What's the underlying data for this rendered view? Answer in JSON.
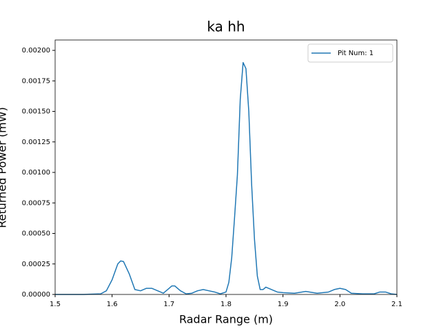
{
  "chart_data": {
    "type": "line",
    "title": "ka hh",
    "xlabel": "Radar Range (m)",
    "ylabel": "Returned Power (mW)",
    "x": [
      1.5,
      1.55,
      1.58,
      1.59,
      1.6,
      1.61,
      1.615,
      1.62,
      1.63,
      1.64,
      1.65,
      1.66,
      1.67,
      1.68,
      1.69,
      1.7,
      1.705,
      1.71,
      1.72,
      1.73,
      1.74,
      1.75,
      1.76,
      1.77,
      1.78,
      1.79,
      1.8,
      1.805,
      1.81,
      1.815,
      1.82,
      1.825,
      1.83,
      1.835,
      1.84,
      1.845,
      1.85,
      1.855,
      1.86,
      1.865,
      1.87,
      1.88,
      1.89,
      1.9,
      1.92,
      1.94,
      1.96,
      1.98,
      1.99,
      2.0,
      2.01,
      2.02,
      2.04,
      2.06,
      2.07,
      2.08,
      2.09,
      2.1
    ],
    "series": [
      {
        "name": "Pit Num: 1",
        "color": "#1f77b4",
        "values": [
          0,
          0,
          5e-06,
          3e-05,
          0.00012,
          0.00025,
          0.000275,
          0.00027,
          0.00017,
          4e-05,
          3e-05,
          5e-05,
          5e-05,
          3e-05,
          1e-05,
          5e-05,
          7e-05,
          7e-05,
          3e-05,
          5e-06,
          1e-05,
          3e-05,
          4e-05,
          3e-05,
          2e-05,
          5e-06,
          2e-05,
          0.0001,
          0.0003,
          0.00063,
          0.00098,
          0.0016,
          0.0019,
          0.00185,
          0.0015,
          0.0009,
          0.00045,
          0.00015,
          4e-05,
          4e-05,
          6e-05,
          4e-05,
          2e-05,
          1.5e-05,
          1e-05,
          2.5e-05,
          1e-05,
          2e-05,
          4e-05,
          5e-05,
          4e-05,
          1e-05,
          5e-06,
          5e-06,
          2e-05,
          2e-05,
          5e-06,
          0
        ]
      }
    ],
    "xlim": [
      1.5,
      2.1
    ],
    "xticks": [
      1.5,
      1.6,
      1.7,
      1.8,
      1.9,
      {
        "value": 2,
        "label": "2.0"
      },
      2.1
    ],
    "ylim": [
      0,
      0.002085
    ],
    "yticks": [
      {
        "value": 0,
        "label": "0.00000"
      },
      {
        "value": 0.00025,
        "label": "0.00025"
      },
      {
        "value": 0.0005,
        "label": "0.00050"
      },
      {
        "value": 0.00075,
        "label": "0.00075"
      },
      {
        "value": 0.001,
        "label": "0.00100"
      },
      {
        "value": 0.00125,
        "label": "0.00125"
      },
      {
        "value": 0.0015,
        "label": "0.00150"
      },
      {
        "value": 0.00175,
        "label": "0.00175"
      },
      {
        "value": 0.002,
        "label": "0.00200"
      }
    ],
    "legend": "upper right"
  }
}
